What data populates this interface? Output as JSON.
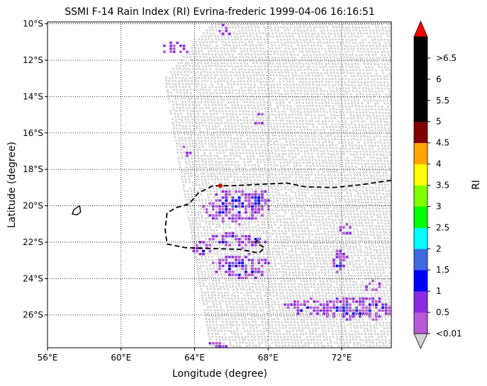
{
  "title": "SSMI F-14 Rain Index (RI) Evrina-frederic 1999-04-06 16:16:51",
  "axes": {
    "xlabel": "Longitude (degree)",
    "ylabel": "Latitude (degree)",
    "xlim": [
      56,
      74.7
    ],
    "ylim": [
      -27.8,
      -9.9
    ],
    "xticks": [
      {
        "value": 56,
        "label": "56°E"
      },
      {
        "value": 60,
        "label": "60°E"
      },
      {
        "value": 64,
        "label": "64°E"
      },
      {
        "value": 68,
        "label": "68°E"
      },
      {
        "value": 72,
        "label": "72°E"
      }
    ],
    "yticks": [
      {
        "value": -10,
        "label": "10°S"
      },
      {
        "value": -12,
        "label": "12°S"
      },
      {
        "value": -14,
        "label": "14°S"
      },
      {
        "value": -16,
        "label": "16°S"
      },
      {
        "value": -18,
        "label": "18°S"
      },
      {
        "value": -20,
        "label": "20°S"
      },
      {
        "value": -22,
        "label": "22°S"
      },
      {
        "value": -24,
        "label": "24°S"
      },
      {
        "value": -26,
        "label": "26°S"
      }
    ],
    "grid": "dotted"
  },
  "colorbar": {
    "label": "RI",
    "under_color": "#d3d3d3",
    "over_color": "#ff0000",
    "levels": [
      {
        "label": "<0.01",
        "color": "#b65ad8"
      },
      {
        "label": "0.5",
        "color": "#8a2be2"
      },
      {
        "label": "1",
        "color": "#0000ff"
      },
      {
        "label": "1.5",
        "color": "#4169e1"
      },
      {
        "label": "2",
        "color": "#00ffff"
      },
      {
        "label": "2.5",
        "color": "#00ff00"
      },
      {
        "label": "3",
        "color": "#7fff00"
      },
      {
        "label": "3.5",
        "color": "#ffff00"
      },
      {
        "label": "4",
        "color": "#ffa500"
      },
      {
        "label": "4.5",
        "color": "#800000"
      },
      {
        "label": "5",
        "color": "#000000"
      },
      {
        "label": "5.5",
        "color": "#000000"
      },
      {
        "label": "6",
        "color": "#000000"
      },
      {
        "label": ">6.5",
        "color": "#000000"
      }
    ]
  },
  "map_data": {
    "swath_color": "#d3d3d3",
    "storm_center": {
      "lon": 65.4,
      "lat": -18.9,
      "color": "#cc0000"
    },
    "island_outline": [
      [
        57.45,
        -20.2
      ],
      [
        57.75,
        -20.0
      ],
      [
        57.8,
        -20.35
      ],
      [
        57.6,
        -20.5
      ],
      [
        57.35,
        -20.45
      ],
      [
        57.45,
        -20.2
      ]
    ],
    "track_dashed": [
      [
        74.7,
        -18.6
      ],
      [
        73,
        -18.85
      ],
      [
        71.5,
        -19.0
      ],
      [
        70,
        -18.95
      ],
      [
        69,
        -18.75
      ],
      [
        68,
        -18.8
      ],
      [
        67,
        -18.85
      ],
      [
        66,
        -18.9
      ],
      [
        65,
        -18.9
      ],
      [
        64.2,
        -19.3
      ],
      [
        63.7,
        -19.9
      ],
      [
        63,
        -20.1
      ],
      [
        62.5,
        -20.4
      ],
      [
        62.4,
        -21.3
      ],
      [
        62.5,
        -22.1
      ],
      [
        63.5,
        -22.3
      ],
      [
        65,
        -22.35
      ],
      [
        66.5,
        -22.4
      ],
      [
        67.5,
        -22.6
      ],
      [
        67.8,
        -22.3
      ],
      [
        67.3,
        -22.0
      ],
      [
        67.6,
        -21.8
      ]
    ],
    "rain_clusters": [
      {
        "lon": 66.2,
        "lat": -20.0,
        "rx": 1.8,
        "ry": 0.9,
        "n": 150,
        "core": 0.35
      },
      {
        "lon": 67.3,
        "lat": -19.7,
        "rx": 0.7,
        "ry": 0.6,
        "n": 60,
        "core": 0.7
      },
      {
        "lon": 66.5,
        "lat": -23.3,
        "rx": 1.6,
        "ry": 0.7,
        "n": 110,
        "core": 0.4
      },
      {
        "lon": 66.3,
        "lat": -21.8,
        "rx": 1.5,
        "ry": 0.4,
        "n": 70,
        "core": 0.2
      },
      {
        "lon": 64.4,
        "lat": -22.2,
        "rx": 0.5,
        "ry": 0.4,
        "n": 30,
        "core": 0.5
      },
      {
        "lon": 72.8,
        "lat": -25.6,
        "rx": 2.2,
        "ry": 0.6,
        "n": 140,
        "core": 0.4
      },
      {
        "lon": 70.0,
        "lat": -25.5,
        "rx": 1.3,
        "ry": 0.4,
        "n": 50,
        "core": 0.2
      },
      {
        "lon": 71.8,
        "lat": -23.0,
        "rx": 0.4,
        "ry": 0.7,
        "n": 40,
        "core": 0.3
      },
      {
        "lon": 72.2,
        "lat": -21.2,
        "rx": 0.3,
        "ry": 0.3,
        "n": 12,
        "core": 0.2
      },
      {
        "lon": 65.1,
        "lat": -27.7,
        "rx": 0.6,
        "ry": 0.3,
        "n": 20,
        "core": 0.2
      },
      {
        "lon": 62.9,
        "lat": -11.3,
        "rx": 0.8,
        "ry": 0.3,
        "n": 16,
        "core": 0.0
      },
      {
        "lon": 65.6,
        "lat": -10.3,
        "rx": 0.4,
        "ry": 0.3,
        "n": 10,
        "core": 0.0
      },
      {
        "lon": 63.5,
        "lat": -16.9,
        "rx": 0.3,
        "ry": 0.3,
        "n": 6,
        "core": 0.0
      },
      {
        "lon": 67.5,
        "lat": -15.2,
        "rx": 0.3,
        "ry": 0.4,
        "n": 6,
        "core": 0.0
      },
      {
        "lon": 73.6,
        "lat": -24.3,
        "rx": 0.5,
        "ry": 0.4,
        "n": 12,
        "core": 0.0
      }
    ]
  }
}
